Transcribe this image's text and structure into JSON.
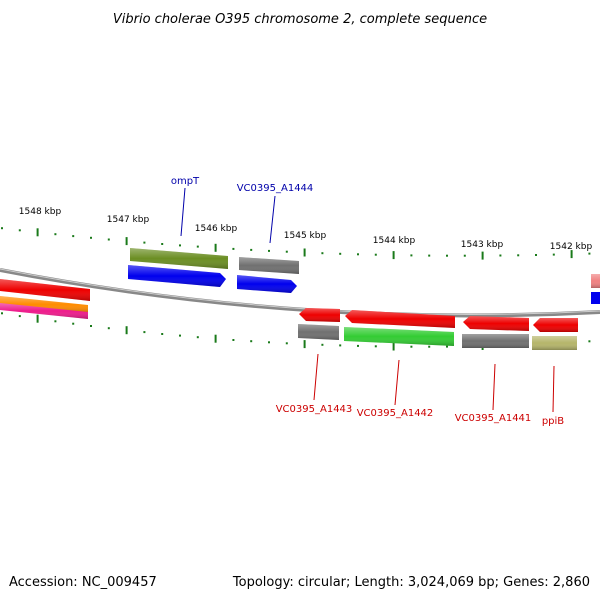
{
  "title": "Vibrio cholerae O395 chromosome 2, complete sequence",
  "footer": {
    "accession": "Accession: NC_009457",
    "summary": "Topology: circular; Length: 3,024,069 bp; Genes: 2,860"
  },
  "scale_labels": [
    "1548 kbp",
    "1547 kbp",
    "1546 kbp",
    "1545 kbp",
    "1544 kbp",
    "1543 kbp",
    "1542 kbp"
  ],
  "gene_labels_top": [
    {
      "text": "ompT",
      "color": "#0000aa"
    },
    {
      "text": "VC0395_A1444",
      "color": "#0000aa"
    }
  ],
  "gene_labels_bottom": [
    {
      "text": "VC0395_A1443",
      "color": "#cc0000"
    },
    {
      "text": "VC0395_A1442",
      "color": "#cc0000"
    },
    {
      "text": "VC0395_A1441",
      "color": "#cc0000"
    },
    {
      "text": "ppiB",
      "color": "#cc0000"
    }
  ],
  "colors": {
    "cds_forward": "#0000ee",
    "cds_reverse": "#ee0000",
    "cog_olive": "#6b8e23",
    "cog_gray": "#707070",
    "cog_green": "#33cc33",
    "cog_khaki": "#b5b56a",
    "cog_orange": "#ff8c00",
    "cog_pink": "#ee1c8c",
    "backbone": "#888888",
    "tick": "#1a7a1a"
  }
}
